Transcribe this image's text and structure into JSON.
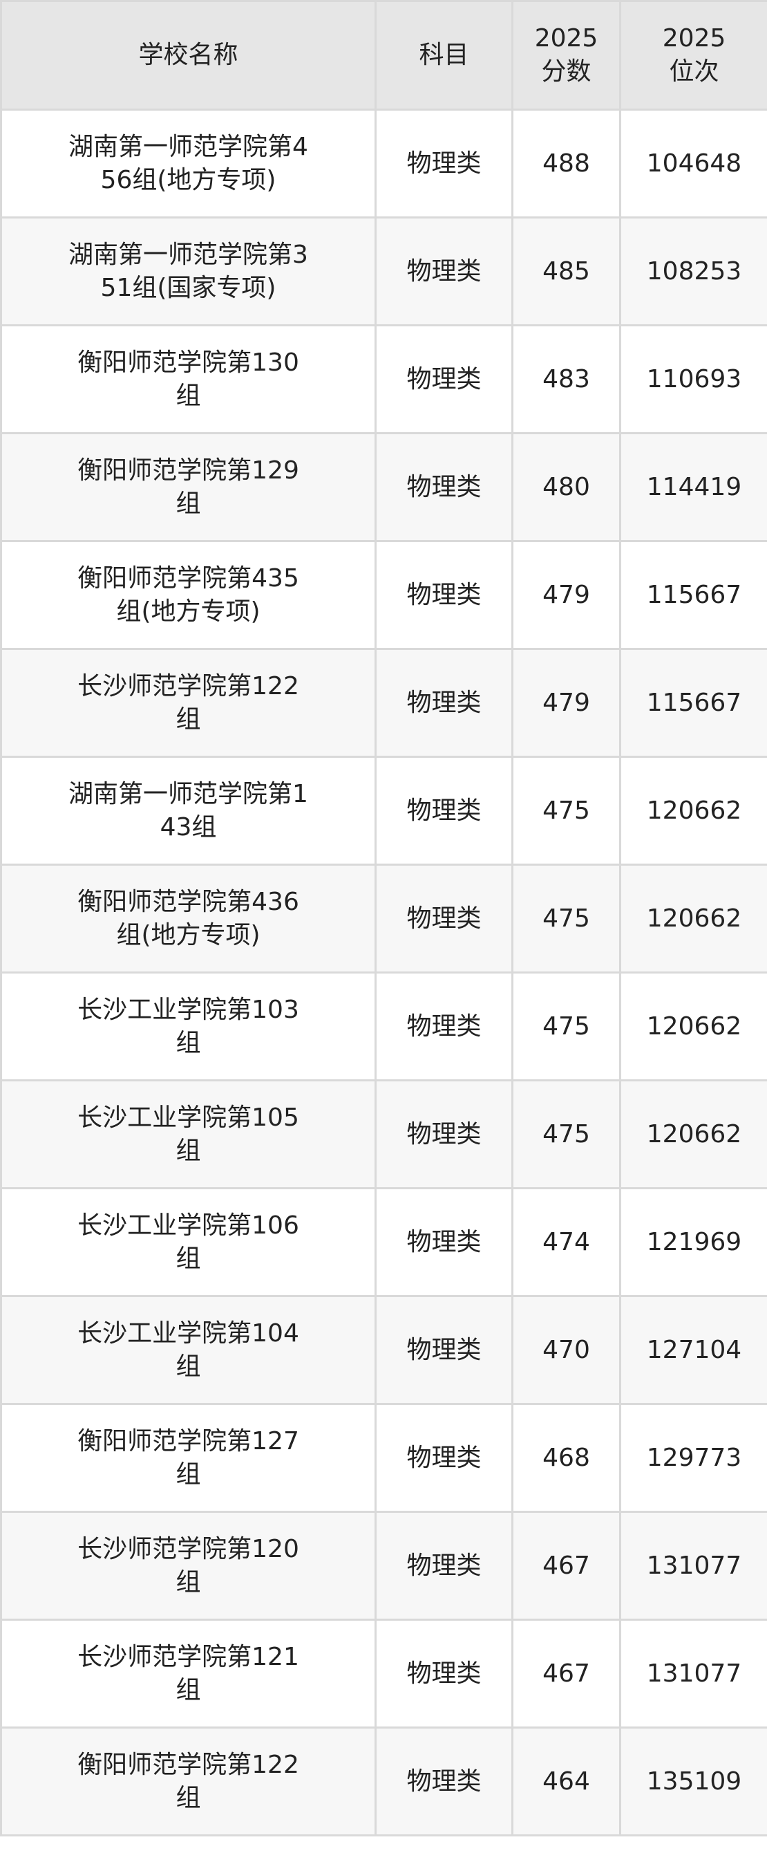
{
  "header": {
    "school": "学校名称",
    "subject": "科目",
    "score_year": "2025",
    "score_label": "分数",
    "rank_year": "2025",
    "rank_label": "位次"
  },
  "rows": [
    {
      "name_lines": [
        "湖南第一师范学院第4",
        "56组(地方专项)"
      ],
      "subject": "物理类",
      "score": "488",
      "rank": "104648"
    },
    {
      "name_lines": [
        "湖南第一师范学院第3",
        "51组(国家专项)"
      ],
      "subject": "物理类",
      "score": "485",
      "rank": "108253"
    },
    {
      "name_lines": [
        "衡阳师范学院第130",
        "组"
      ],
      "subject": "物理类",
      "score": "483",
      "rank": "110693"
    },
    {
      "name_lines": [
        "衡阳师范学院第129",
        "组"
      ],
      "subject": "物理类",
      "score": "480",
      "rank": "114419"
    },
    {
      "name_lines": [
        "衡阳师范学院第435",
        "组(地方专项)"
      ],
      "subject": "物理类",
      "score": "479",
      "rank": "115667"
    },
    {
      "name_lines": [
        "长沙师范学院第122",
        "组"
      ],
      "subject": "物理类",
      "score": "479",
      "rank": "115667"
    },
    {
      "name_lines": [
        "湖南第一师范学院第1",
        "43组"
      ],
      "subject": "物理类",
      "score": "475",
      "rank": "120662"
    },
    {
      "name_lines": [
        "衡阳师范学院第436",
        "组(地方专项)"
      ],
      "subject": "物理类",
      "score": "475",
      "rank": "120662"
    },
    {
      "name_lines": [
        "长沙工业学院第103",
        "组"
      ],
      "subject": "物理类",
      "score": "475",
      "rank": "120662"
    },
    {
      "name_lines": [
        "长沙工业学院第105",
        "组"
      ],
      "subject": "物理类",
      "score": "475",
      "rank": "120662"
    },
    {
      "name_lines": [
        "长沙工业学院第106",
        "组"
      ],
      "subject": "物理类",
      "score": "474",
      "rank": "121969"
    },
    {
      "name_lines": [
        "长沙工业学院第104",
        "组"
      ],
      "subject": "物理类",
      "score": "470",
      "rank": "127104"
    },
    {
      "name_lines": [
        "衡阳师范学院第127",
        "组"
      ],
      "subject": "物理类",
      "score": "468",
      "rank": "129773"
    },
    {
      "name_lines": [
        "长沙师范学院第120",
        "组"
      ],
      "subject": "物理类",
      "score": "467",
      "rank": "131077"
    },
    {
      "name_lines": [
        "长沙师范学院第121",
        "组"
      ],
      "subject": "物理类",
      "score": "467",
      "rank": "131077"
    },
    {
      "name_lines": [
        "衡阳师范学院第122",
        "组"
      ],
      "subject": "物理类",
      "score": "464",
      "rank": "135109"
    }
  ],
  "colors": {
    "header_bg": "#e6e6e6",
    "alt_row_bg": "#f7f7f7",
    "border": "#d9d9d9"
  }
}
